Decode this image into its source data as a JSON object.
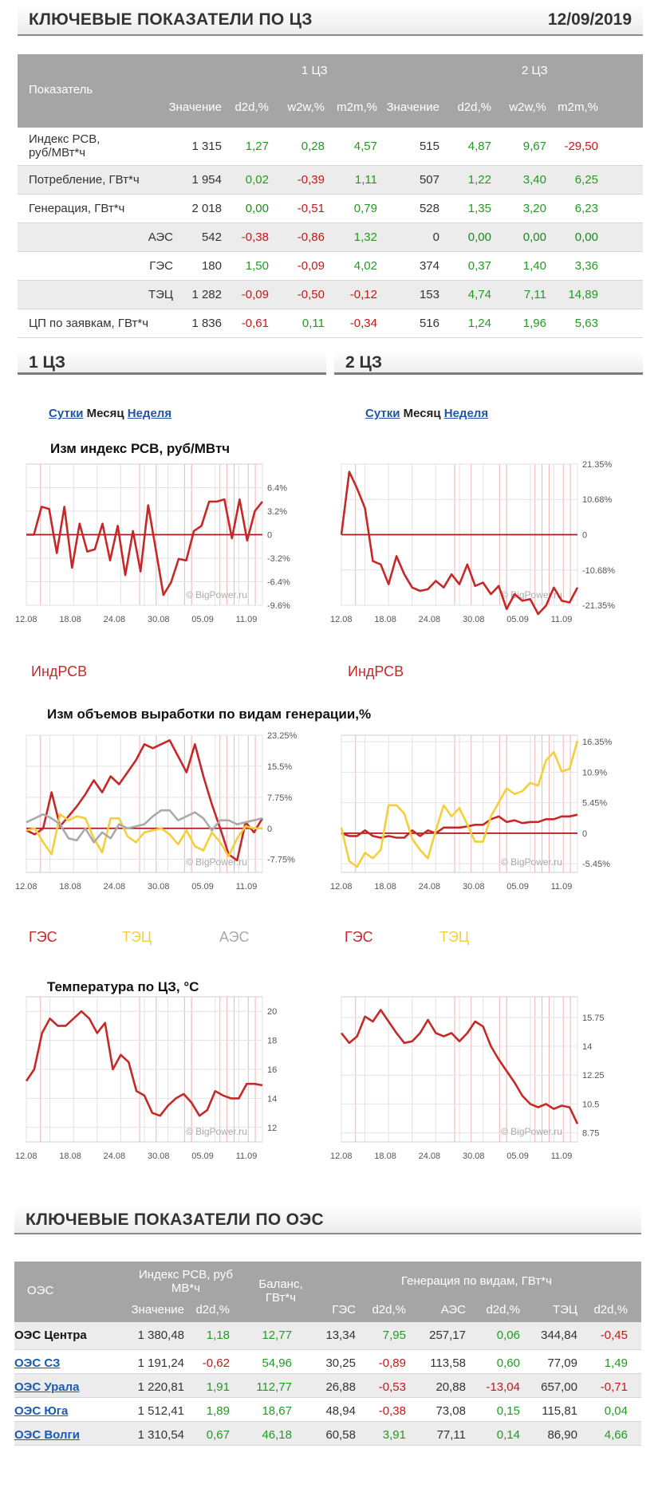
{
  "header": {
    "title": "КЛЮЧЕВЫЕ ПОКАЗАТЕЛИ ПО ЦЗ",
    "date": "12/09/2019"
  },
  "table1": {
    "col_indicator": "Показатель",
    "zone1": "1 ЦЗ",
    "zone2": "2 ЦЗ",
    "cols": [
      "Значение",
      "d2d,%",
      "w2w,%",
      "m2m,%",
      "Значение",
      "d2d,%",
      "w2w,%",
      "m2m,%"
    ],
    "rows": [
      {
        "label": "Индекс РСВ, руб/МВт*ч",
        "cells": [
          "1 315",
          "1,27",
          "0,28",
          "4,57",
          "515",
          "4,87",
          "9,67",
          "-29,50"
        ],
        "cls": [
          "",
          "pos",
          "pos",
          "pos",
          "",
          "pos",
          "pos",
          "neg"
        ]
      },
      {
        "label": "Потребление, ГВт*ч",
        "cells": [
          "1 954",
          "0,02",
          "-0,39",
          "1,11",
          "507",
          "1,22",
          "3,40",
          "6,25"
        ],
        "cls": [
          "",
          "pos",
          "neg",
          "pos",
          "",
          "pos",
          "pos",
          "pos"
        ]
      },
      {
        "label": "Генерация, ГВт*ч",
        "cells": [
          "2 018",
          "0,00",
          "-0,51",
          "0,79",
          "528",
          "1,35",
          "3,20",
          "6,23"
        ],
        "cls": [
          "",
          "zer",
          "neg",
          "pos",
          "",
          "pos",
          "pos",
          "pos"
        ]
      },
      {
        "label": "АЭС",
        "cells": [
          "542",
          "-0,38",
          "-0,86",
          "1,32",
          "0",
          "0,00",
          "0,00",
          "0,00"
        ],
        "cls": [
          "",
          "neg",
          "neg",
          "pos",
          "",
          "zer",
          "zer",
          "zer"
        ]
      },
      {
        "label": "ГЭС",
        "cells": [
          "180",
          "1,50",
          "-0,09",
          "4,02",
          "374",
          "0,37",
          "1,40",
          "3,36"
        ],
        "cls": [
          "",
          "pos",
          "neg",
          "pos",
          "",
          "pos",
          "pos",
          "pos"
        ]
      },
      {
        "label": "ТЭЦ",
        "cells": [
          "1 282",
          "-0,09",
          "-0,50",
          "-0,12",
          "153",
          "4,74",
          "7,11",
          "14,89"
        ],
        "cls": [
          "",
          "neg",
          "neg",
          "neg",
          "",
          "pos",
          "pos",
          "pos"
        ]
      },
      {
        "label": "ЦП по заявкам, ГВт*ч",
        "cells": [
          "1 836",
          "-0,61",
          "0,11",
          "-0,34",
          "516",
          "1,24",
          "1,96",
          "5,63"
        ],
        "cls": [
          "",
          "neg",
          "pos",
          "neg",
          "",
          "pos",
          "pos",
          "pos"
        ]
      }
    ]
  },
  "zones": {
    "left": "1 ЦЗ",
    "right": "2 ЦЗ"
  },
  "period_links": {
    "day": "Сутки",
    "month": "Месяц",
    "week": "Неделя"
  },
  "chart_titles": {
    "rsv": "Изм индекс РСВ, руб/МВтч",
    "gen": "Изм объемов выработки по видам генерации,%",
    "temp": "Температура по ЦЗ, °C"
  },
  "watermark": "© BigPower.ru",
  "x_ticks": [
    "12.08",
    "18.08",
    "24.08",
    "30.08",
    "05.09",
    "11.09"
  ],
  "legend": {
    "rsv": "ИндРСВ",
    "hydro": "ГЭС",
    "chp": "ТЭЦ",
    "nuclear": "АЭС"
  },
  "colors": {
    "red": "#c62828",
    "yellow": "#f5cf3b",
    "grey": "#aaaaaa",
    "link": "#2255aa"
  },
  "chart_data": [
    {
      "id": "rsv1",
      "type": "line",
      "ylim": [
        -9.6,
        9.6
      ],
      "yticks": [
        "6.4%",
        "3.2%",
        "0",
        "-3.2%",
        "-6.4%",
        "-9.6%"
      ],
      "series": [
        {
          "name": "ИндРСВ",
          "color": "#c62828",
          "values": [
            0,
            0,
            3.8,
            3.5,
            -2.5,
            3.8,
            -4.5,
            1.5,
            -2.3,
            -2,
            1.5,
            -3.5,
            1.2,
            -5.5,
            0.5,
            -5,
            4,
            -2,
            -8.2,
            -6.5,
            -3.3,
            -3.5,
            0.5,
            1.2,
            4.5,
            4.5,
            4.8,
            -0.5,
            4.8,
            -0.8,
            3.2,
            4.5
          ]
        }
      ]
    },
    {
      "id": "rsv2",
      "type": "line",
      "ylim": [
        -21.35,
        21.35
      ],
      "yticks": [
        "21.35%",
        "10.68%",
        "0",
        "-10.68%",
        "-21.35%"
      ],
      "series": [
        {
          "name": "ИндРСВ",
          "color": "#c62828",
          "values": [
            0,
            19,
            14,
            8,
            -8,
            -9,
            -15,
            -6.5,
            -12,
            -16,
            -17,
            -16.5,
            -14,
            -16,
            -12,
            -15,
            -9,
            -15.5,
            -14.5,
            -18,
            -15.5,
            -22.5,
            -18,
            -20,
            -19.5,
            -24,
            -21.5,
            -16,
            -20,
            -20.5,
            -16
          ]
        }
      ]
    },
    {
      "id": "gen1",
      "type": "line",
      "ylim": [
        -11,
        23.25
      ],
      "yticks": [
        "23.25%",
        "15.5%",
        "7.75%",
        "0",
        "-7.75%"
      ],
      "series": [
        {
          "name": "ГЭС",
          "color": "#c62828",
          "values": [
            -0.5,
            -1.5,
            0,
            9,
            0.5,
            3,
            5.5,
            8.5,
            12,
            9,
            13,
            11,
            14,
            17,
            21,
            20,
            21,
            22,
            18,
            14,
            21,
            13,
            6,
            0,
            -6.5,
            -8,
            1.5,
            -1,
            2.5
          ]
        },
        {
          "name": "ТЭЦ",
          "color": "#f5cf3b",
          "values": [
            -0.5,
            0,
            -3.5,
            -6.5,
            3.5,
            2,
            3,
            2.5,
            -2.5,
            -6,
            2.5,
            2.5,
            -2,
            -3.5,
            -1,
            -0.5,
            0,
            -1.5,
            -4,
            -0.5,
            -4.5,
            -5.5,
            -1,
            -3.5,
            -7,
            -2.5,
            0.5,
            0,
            0
          ]
        },
        {
          "name": "АЭС",
          "color": "#aaaaaa",
          "values": [
            1.5,
            2.5,
            3.5,
            2.5,
            1,
            -2.5,
            -3,
            0,
            -3.5,
            -1,
            -2.5,
            1,
            0,
            0.5,
            1,
            3,
            4.5,
            4.5,
            2,
            3,
            4,
            2.5,
            -0.5,
            2,
            2,
            1,
            1.5,
            2,
            2.5
          ]
        }
      ]
    },
    {
      "id": "gen2",
      "type": "line",
      "ylim": [
        -7,
        17.5
      ],
      "yticks": [
        "16.35%",
        "10.9%",
        "5.45%",
        "0",
        "-5.45%"
      ],
      "series": [
        {
          "name": "ГЭС",
          "color": "#c62828",
          "values": [
            0,
            -0.5,
            -0.5,
            0.5,
            -0.5,
            -0.8,
            -0.5,
            -0.8,
            -0.8,
            0.5,
            -0.5,
            0.5,
            0,
            1,
            1,
            1,
            1.2,
            1.5,
            1.5,
            2.5,
            3,
            2,
            2.3,
            1.8,
            2,
            2,
            2.5,
            2.5,
            3,
            3,
            3.3
          ]
        },
        {
          "name": "ТЭЦ",
          "color": "#f5cf3b",
          "values": [
            1,
            -5,
            -6,
            -3.5,
            -4.5,
            -3,
            5,
            5,
            3.5,
            -1,
            -3,
            -4.5,
            0.5,
            5,
            3,
            4.5,
            1.5,
            -1.5,
            -1.5,
            3,
            5.5,
            8,
            7,
            7.5,
            9,
            8.5,
            13,
            14.5,
            11,
            11.5,
            16.5
          ]
        }
      ]
    },
    {
      "id": "temp1",
      "type": "line",
      "ylim": [
        11,
        21
      ],
      "yticks": [
        "20",
        "18",
        "16",
        "14",
        "12"
      ],
      "series": [
        {
          "name": "Температура",
          "color": "#c62828",
          "values": [
            15.2,
            16,
            18.5,
            19.5,
            19,
            19,
            19.5,
            20,
            19.5,
            18.5,
            19.2,
            16,
            17,
            16.5,
            14.5,
            14.2,
            13,
            12.8,
            13.5,
            14,
            14.3,
            13.7,
            12.8,
            13.2,
            14.5,
            14.2,
            14,
            14,
            15,
            15,
            14.9
          ]
        }
      ]
    },
    {
      "id": "temp2",
      "type": "line",
      "ylim": [
        8.2,
        17
      ],
      "yticks": [
        "15.75",
        "14",
        "12.25",
        "10.5",
        "8.75"
      ],
      "series": [
        {
          "name": "Температура",
          "color": "#c62828",
          "values": [
            14.8,
            14.2,
            14.6,
            15.8,
            15.5,
            16.2,
            15.5,
            14.8,
            14.2,
            14.3,
            14.8,
            15.6,
            14.8,
            14.6,
            14.8,
            14.3,
            14.8,
            15.5,
            15.2,
            14,
            13.2,
            12.5,
            11.8,
            11,
            10.5,
            10.3,
            10.5,
            10.2,
            10.4,
            10.3,
            9.3
          ]
        }
      ]
    }
  ],
  "header2": {
    "title": "КЛЮЧЕВЫЕ ПОКАЗАТЕЛИ ПО ОЭС"
  },
  "table2": {
    "h_oes": "ОЭС",
    "h_rsv": "Индекс РСВ, руб МВ*ч",
    "h_balance": "Баланс, ГВт*ч",
    "h_gen": "Генерация по видам, ГВт*ч",
    "sub": [
      "Значение",
      "d2d,%",
      "ГЭС",
      "d2d,%",
      "АЭС",
      "d2d,%",
      "ТЭЦ",
      "d2d,%"
    ],
    "rows": [
      {
        "name": "ОЭС Центра",
        "link": false,
        "cells": [
          "1 380,48",
          "1,18",
          "12,77",
          "13,34",
          "7,95",
          "257,17",
          "0,06",
          "344,84",
          "-0,45"
        ],
        "cls": [
          "",
          "pos",
          "pos",
          "",
          "pos",
          "",
          "pos",
          "",
          "neg"
        ]
      },
      {
        "name": "ОЭС СЗ",
        "link": true,
        "cells": [
          "1 191,24",
          "-0,62",
          "54,96",
          "30,25",
          "-0,89",
          "113,58",
          "0,60",
          "77,09",
          "1,49"
        ],
        "cls": [
          "",
          "neg",
          "pos",
          "",
          "neg",
          "",
          "pos",
          "",
          "pos"
        ]
      },
      {
        "name": "ОЭС Урала",
        "link": true,
        "cells": [
          "1 220,81",
          "1,91",
          "112,77",
          "26,88",
          "-0,53",
          "20,88",
          "-13,04",
          "657,00",
          "-0,71"
        ],
        "cls": [
          "",
          "pos",
          "pos",
          "",
          "neg",
          "",
          "neg",
          "",
          "neg"
        ]
      },
      {
        "name": "ОЭС Юга",
        "link": true,
        "cells": [
          "1 512,41",
          "1,89",
          "18,67",
          "48,94",
          "-0,38",
          "73,08",
          "0,15",
          "115,81",
          "0,04"
        ],
        "cls": [
          "",
          "pos",
          "pos",
          "",
          "neg",
          "",
          "pos",
          "",
          "pos"
        ]
      },
      {
        "name": "ОЭС Волги",
        "link": true,
        "cells": [
          "1 310,54",
          "0,67",
          "46,18",
          "60,58",
          "3,91",
          "77,11",
          "0,14",
          "86,90",
          "4,66"
        ],
        "cls": [
          "",
          "pos",
          "pos",
          "",
          "pos",
          "",
          "pos",
          "",
          "pos"
        ]
      }
    ]
  }
}
